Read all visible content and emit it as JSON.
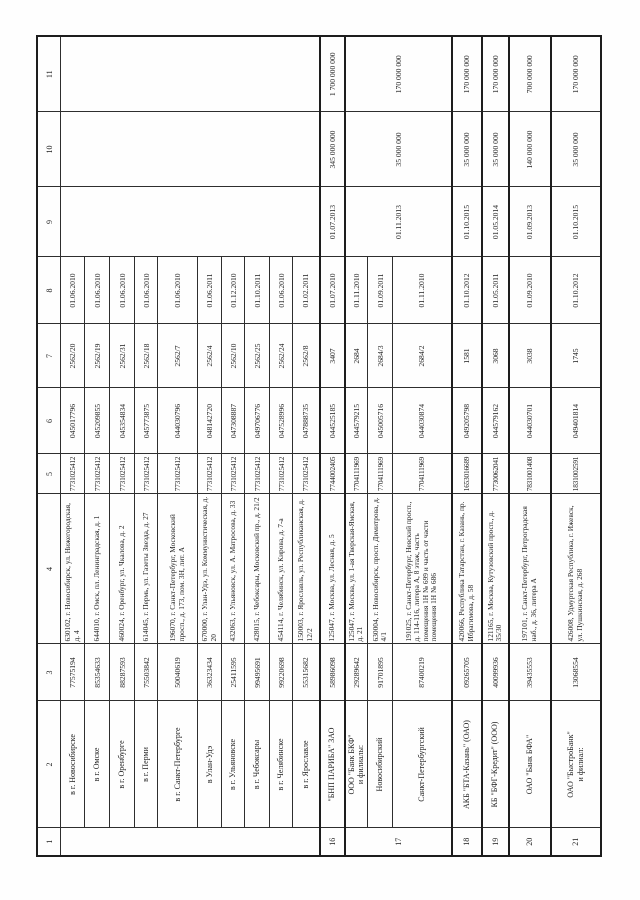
{
  "header": {
    "columns": [
      "1",
      "2",
      "3",
      "4",
      "5",
      "6",
      "7",
      "8",
      "9",
      "10",
      "11"
    ]
  },
  "rows": [
    {
      "merge": "g1",
      "no": "",
      "name": "в г. Новосибирске",
      "code": "77575194",
      "address": "630102, г. Новосибирск, ул. Нижегородская, д. 4",
      "inn": "7731025412",
      "bik": "045017796",
      "reg_no": "2562/20",
      "date_open": "01.06.2010",
      "date2": "",
      "sum1": "",
      "sum2": ""
    },
    {
      "merge": "g1",
      "name": "в г. Омске",
      "code": "85354633",
      "address": "644010, г. Омск, пл. Ленинградская, д. 1",
      "inn": "7731025412",
      "bik": "045209855",
      "reg_no": "2562/19",
      "date_open": "01.06.2010"
    },
    {
      "merge": "g1",
      "name": "в г. Оренбурге",
      "code": "88287593",
      "address": "460024, г. Оренбург, ул. Чкалова, д. 2",
      "inn": "7731025412",
      "bik": "045354834",
      "reg_no": "2562/31",
      "date_open": "01.06.2010"
    },
    {
      "merge": "g1",
      "name": "в г. Перми",
      "code": "75503842",
      "address": "614045, г. Пермь, ул. Газеты Звезда, д. 27",
      "inn": "7731025412",
      "bik": "045773875",
      "reg_no": "2562/18",
      "date_open": "01.06.2010"
    },
    {
      "merge": "g1",
      "name": "в г. Санкт-Петербурге",
      "code": "50040619",
      "address": "196070, г. Санкт-Петербург, Московский просп., д. 173, пом. 3Н, лит. А",
      "inn": "7731025412",
      "bik": "044030796",
      "reg_no": "2562/7",
      "date_open": "01.06.2010"
    },
    {
      "merge": "g1",
      "name": "в Улан-Удэ",
      "code": "36323434",
      "address": "670000, г. Улан-Удэ, ул. Коммунистическая, д. 20",
      "inn": "7731025412",
      "bik": "048142720",
      "reg_no": "2562/4",
      "date_open": "01.06.2011"
    },
    {
      "merge": "g1",
      "name": "в г. Ульяновске",
      "code": "25411595",
      "address": "432063, г. Ульяновск, ул. А. Матросова, д. 33",
      "inn": "7731025412",
      "bik": "047308887",
      "reg_no": "2562/10",
      "date_open": "01.12.2010"
    },
    {
      "merge": "g1",
      "name": "в г. Чебоксары",
      "code": "99495691",
      "address": "428015, г. Чебоксары, Московский пр., д. 21/2",
      "inn": "7731025412",
      "bik": "049706776",
      "reg_no": "2562/25",
      "date_open": "01.10.2011"
    },
    {
      "merge": "g1",
      "name": "в г. Челябинске",
      "code": "99220698",
      "address": "454114, г. Челябинск, ул. Кирова, д. 7-а",
      "inn": "7731025412",
      "bik": "047528996",
      "reg_no": "2562/24",
      "date_open": "01.06.2010"
    },
    {
      "merge": "g1",
      "name": "в г. Ярославле",
      "code": "55315682",
      "address": "150003, г. Ярославль, ул. Республиканская, д. 12/2",
      "inn": "7731025412",
      "bik": "047888735",
      "reg_no": "2562/8",
      "date_open": "01.02.2011"
    },
    {
      "no": "16",
      "name": "\"БНП ПАРИБА\" ЗАО",
      "code": "58986098",
      "address": "125047, г. Москва, ул. Лесная, д. 5",
      "inn": "7744002405",
      "bik": "044525185",
      "reg_no": "3407",
      "date_open": "01.07.2010",
      "date2": "01.07.2013",
      "sum1": "345 000 000",
      "sum2": "1 700 000 000"
    },
    {
      "merge": "g2",
      "no": "17",
      "name": "ООО \"Банк БКФ\"\nи филиалы:",
      "code": "29289642",
      "address": "125047, г. Москва, ул. 1-ая Тверская-Ямская, д. 21",
      "inn": "7704111969",
      "bik": "044579215",
      "reg_no": "2684",
      "date_open": "01.11.2010",
      "date2": "01.11.2013",
      "sum1": "35 000 000",
      "sum2": "170 000 000"
    },
    {
      "merge": "g2",
      "name": "Новосибирский",
      "code": "91701895",
      "address": "630004, г. Новосибирск, просп. Димитрова, д. 4/1",
      "inn": "7704111969",
      "bik": "045005716",
      "reg_no": "2684/3",
      "date_open": "01.09.2011"
    },
    {
      "merge": "g2",
      "name": "Санкт-Петербургский",
      "code": "87400219",
      "address": "191025, г. Санкт-Петербург, Невский просп., д. 114-116, литера А, 8 этаж, часть помещения 1Н № 699 и часть от части помещения 1Н № 686",
      "inn": "7704111969",
      "bik": "044030874",
      "reg_no": "2684/2",
      "date_open": "01.11.2010"
    },
    {
      "no": "18",
      "name": "АКБ \"БТА-Казань\" (ОАО)",
      "code": "09265705",
      "address": "420066, Республика Татарстан, г. Казань, пр. Ибрагимова, д. 58",
      "inn": "1653016689",
      "bik": "049205798",
      "reg_no": "1581",
      "date_open": "01.10.2012",
      "date2": "01.10.2015",
      "sum1": "35 000 000",
      "sum2": "170 000 000"
    },
    {
      "no": "19",
      "name": "КБ \"БФГ-Кредит\" (ООО)",
      "code": "40099936",
      "address": "121165, г. Москва, Кутузовский просп., д. 35/30",
      "inn": "7730062041",
      "bik": "044579162",
      "reg_no": "3068",
      "date_open": "01.05.2011",
      "date2": "01.05.2014",
      "sum1": "35 000 000",
      "sum2": "170 000 000"
    },
    {
      "no": "20",
      "name": "ОАО \"Банк БФА\"",
      "code": "39435553",
      "address": "197101, г. Санкт-Петербург, Петроградская наб., д. 36, литера А",
      "inn": "7831001408",
      "bik": "044030701",
      "reg_no": "3038",
      "date_open": "01.09.2010",
      "date2": "01.09.2013",
      "sum1": "140 000 000",
      "sum2": "700 000 000"
    },
    {
      "no": "21",
      "name": "ОАО \"БыстроБанк\"\nи филиал:",
      "code": "13068554",
      "address": "426008, Удмуртская Республика, г. Ижевск, ул. Пушкинская, д. 268",
      "inn": "1831002591",
      "bik": "049401814",
      "reg_no": "1745",
      "date_open": "01.10.2012",
      "date2": "01.10.2015",
      "sum1": "35 000 000",
      "sum2": "170 000 000"
    }
  ]
}
